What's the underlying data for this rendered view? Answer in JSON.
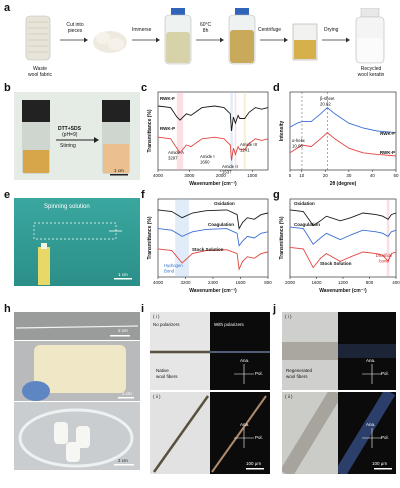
{
  "panel_letters": [
    "a",
    "b",
    "c",
    "d",
    "e",
    "f",
    "g",
    "h",
    "i",
    "j"
  ],
  "panel_a": {
    "step_labels": [
      "Waste\nwool fabric",
      "Recycled\nwool keratin"
    ],
    "arrow_labels": [
      "Cut into\npieces",
      "Immerse",
      "60°C\n8h",
      "Centrifuge",
      "Drying"
    ]
  },
  "panel_b": {
    "arrow_label_1": "DTT+SDS",
    "arrow_label_2": "(pH=9)",
    "arrow_label_3": "Stirring",
    "scale": "1 cm"
  },
  "panel_e": {
    "title": "Spinning solution",
    "scale": "1 cm"
  },
  "panel_h": {
    "scale_top": "2 cm",
    "scale_mid": "1 cm",
    "scale_bot": "2 cm"
  },
  "panel_i": {
    "roman_1": "( i )",
    "roman_2": "( ii )",
    "no_pol": "No polarizers",
    "with_pol": "With polarizers",
    "caption": "Native\nwool fibers",
    "ana": "Ana.",
    "pol": "Pol.",
    "scale": "100 μm"
  },
  "panel_j": {
    "roman_1": "( i )",
    "roman_2": "( ii )",
    "caption": "Regenerated\nwool fibers",
    "ana": "Ana.",
    "pol": "Pol.",
    "scale": "100 μm"
  },
  "chart_data": [
    {
      "panel": "c",
      "type": "line",
      "xlabel": "Wavenumber (cm⁻¹)",
      "ylabel": "Transmittance (%)",
      "xticks": [
        "4000",
        "3000",
        "2000",
        "1000"
      ],
      "xlim": [
        4000,
        500
      ],
      "annotations": [
        "Amide A\n3297",
        "Amide I\n1660",
        "Amide II\n1537",
        "Amide III\n1241"
      ],
      "series": [
        {
          "name": "RWK-F",
          "color": "#1a1a1a",
          "x": [
            4000,
            3600,
            3400,
            3297,
            3100,
            2950,
            2600,
            2200,
            1900,
            1700,
            1660,
            1600,
            1537,
            1450,
            1400,
            1241,
            1100,
            900,
            700,
            500
          ],
          "y": [
            0.82,
            0.8,
            0.68,
            0.64,
            0.72,
            0.7,
            0.8,
            0.82,
            0.8,
            0.72,
            0.5,
            0.68,
            0.6,
            0.7,
            0.66,
            0.66,
            0.74,
            0.8,
            0.78,
            0.8
          ]
        },
        {
          "name": "RWK-P",
          "color": "#e2453f",
          "x": [
            4000,
            3600,
            3400,
            3297,
            3100,
            2950,
            2600,
            2200,
            1900,
            1700,
            1660,
            1600,
            1537,
            1450,
            1400,
            1241,
            1100,
            900,
            700,
            500
          ],
          "y": [
            0.42,
            0.4,
            0.28,
            0.22,
            0.32,
            0.3,
            0.4,
            0.42,
            0.4,
            0.32,
            0.12,
            0.28,
            0.2,
            0.3,
            0.26,
            0.26,
            0.34,
            0.4,
            0.38,
            0.4
          ]
        }
      ]
    },
    {
      "panel": "d",
      "type": "line",
      "xlabel": "2θ (degree)",
      "ylabel": "Intensity",
      "xticks": [
        "5",
        "10",
        "20",
        "30",
        "40",
        "50"
      ],
      "xlim": [
        5,
        50
      ],
      "annotations": [
        "β-sheet\n20.82",
        "α-helix\n10.08"
      ],
      "series": [
        {
          "name": "RWK-F",
          "color": "#3b6fd4",
          "x": [
            5,
            8,
            10.08,
            14,
            18,
            20.82,
            24,
            30,
            36,
            42,
            50
          ],
          "y": [
            0.55,
            0.6,
            0.62,
            0.62,
            0.72,
            0.8,
            0.72,
            0.6,
            0.54,
            0.5,
            0.48
          ]
        },
        {
          "name": "RWK-P",
          "color": "#e2453f",
          "x": [
            5,
            8,
            10.08,
            14,
            18,
            20.82,
            24,
            30,
            36,
            42,
            50
          ],
          "y": [
            0.22,
            0.28,
            0.32,
            0.3,
            0.4,
            0.48,
            0.4,
            0.28,
            0.22,
            0.2,
            0.18
          ]
        }
      ]
    },
    {
      "panel": "f",
      "type": "line",
      "xlabel": "Wavenumber (cm⁻¹)",
      "ylabel": "Transmittance (%)",
      "xticks": [
        "4000",
        "3200",
        "2400",
        "1600",
        "800"
      ],
      "xlim": [
        4000,
        800
      ],
      "annotations": [
        "Hydrogen\nBond"
      ],
      "series": [
        {
          "name": "Oxidation",
          "color": "#1a1a1a",
          "x": [
            4000,
            3600,
            3300,
            3000,
            2600,
            2000,
            1700,
            1640,
            1540,
            1400,
            1200,
            1000,
            800
          ],
          "y": [
            0.86,
            0.84,
            0.76,
            0.82,
            0.85,
            0.86,
            0.8,
            0.62,
            0.7,
            0.76,
            0.74,
            0.8,
            0.82
          ]
        },
        {
          "name": "Coagulation",
          "color": "#3b6fd4",
          "x": [
            4000,
            3600,
            3300,
            3000,
            2600,
            2000,
            1700,
            1640,
            1540,
            1400,
            1200,
            1000,
            800
          ],
          "y": [
            0.62,
            0.6,
            0.52,
            0.58,
            0.61,
            0.62,
            0.56,
            0.4,
            0.46,
            0.52,
            0.5,
            0.56,
            0.58
          ]
        },
        {
          "name": "Stock Solution",
          "color": "#e2453f",
          "x": [
            4000,
            3600,
            3300,
            3000,
            2600,
            2000,
            1700,
            1640,
            1540,
            1400,
            1200,
            1000,
            800
          ],
          "y": [
            0.36,
            0.34,
            0.18,
            0.3,
            0.34,
            0.35,
            0.3,
            0.1,
            0.2,
            0.26,
            0.24,
            0.3,
            0.32
          ]
        }
      ]
    },
    {
      "panel": "g",
      "type": "line",
      "xlabel": "Wavenumber (cm⁻¹)",
      "ylabel": "Transmittance (%)",
      "xticks": [
        "2000",
        "1600",
        "1200",
        "800",
        "400"
      ],
      "xlim": [
        2000,
        400
      ],
      "annotations": [
        "Disulfide\nbond"
      ],
      "series": [
        {
          "name": "Oxidation",
          "color": "#1a1a1a",
          "x": [
            2000,
            1800,
            1650,
            1540,
            1450,
            1240,
            1080,
            900,
            700,
            600,
            520,
            470,
            400
          ],
          "y": [
            0.86,
            0.84,
            0.66,
            0.72,
            0.78,
            0.72,
            0.76,
            0.82,
            0.8,
            0.78,
            0.74,
            0.8,
            0.82
          ]
        },
        {
          "name": "Coagulation",
          "color": "#3b6fd4",
          "x": [
            2000,
            1800,
            1650,
            1540,
            1450,
            1240,
            1080,
            900,
            700,
            600,
            520,
            470,
            400
          ],
          "y": [
            0.64,
            0.62,
            0.42,
            0.5,
            0.56,
            0.48,
            0.54,
            0.6,
            0.58,
            0.56,
            0.52,
            0.58,
            0.6
          ]
        },
        {
          "name": "Stock Solution",
          "color": "#e2453f",
          "x": [
            2000,
            1800,
            1650,
            1540,
            1450,
            1240,
            1080,
            900,
            700,
            600,
            520,
            470,
            400
          ],
          "y": [
            0.38,
            0.36,
            0.12,
            0.24,
            0.3,
            0.2,
            0.26,
            0.32,
            0.3,
            0.28,
            0.2,
            0.3,
            0.32
          ]
        }
      ]
    }
  ]
}
